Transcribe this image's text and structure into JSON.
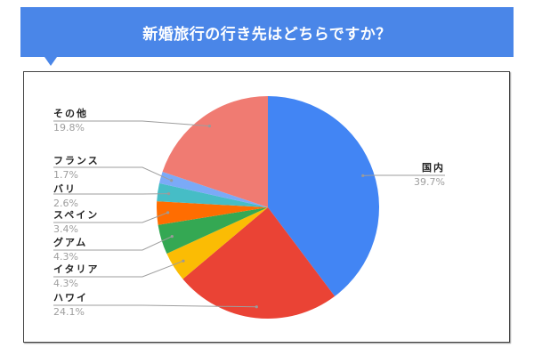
{
  "title": "新婚旅行の行き先はどちらですか？",
  "colors": {
    "banner": "#4a86e8"
  },
  "chart_data": {
    "type": "pie",
    "title": "新婚旅行の行き先はどちらですか？",
    "start_angle_deg": 0,
    "direction": "clockwise",
    "slices": [
      {
        "label": "国内",
        "value": 39.7,
        "pct_label": "39.7%",
        "color": "#4285f4"
      },
      {
        "label": "ハワイ",
        "value": 24.1,
        "pct_label": "24.1%",
        "color": "#ea4335"
      },
      {
        "label": "イタリア",
        "value": 4.3,
        "pct_label": "4.3%",
        "color": "#fbbc04"
      },
      {
        "label": "グアム",
        "value": 4.3,
        "pct_label": "4.3%",
        "color": "#34a853"
      },
      {
        "label": "スペイン",
        "value": 3.4,
        "pct_label": "3.4%",
        "color": "#ff6d01"
      },
      {
        "label": "バリ",
        "value": 2.6,
        "pct_label": "2.6%",
        "color": "#46bdc6"
      },
      {
        "label": "フランス",
        "value": 1.7,
        "pct_label": "1.7%",
        "color": "#7baaf7"
      },
      {
        "label": "その他",
        "value": 19.8,
        "pct_label": "19.8%",
        "color": "#f07b72"
      }
    ],
    "legend": "none (leader-line labels)"
  }
}
